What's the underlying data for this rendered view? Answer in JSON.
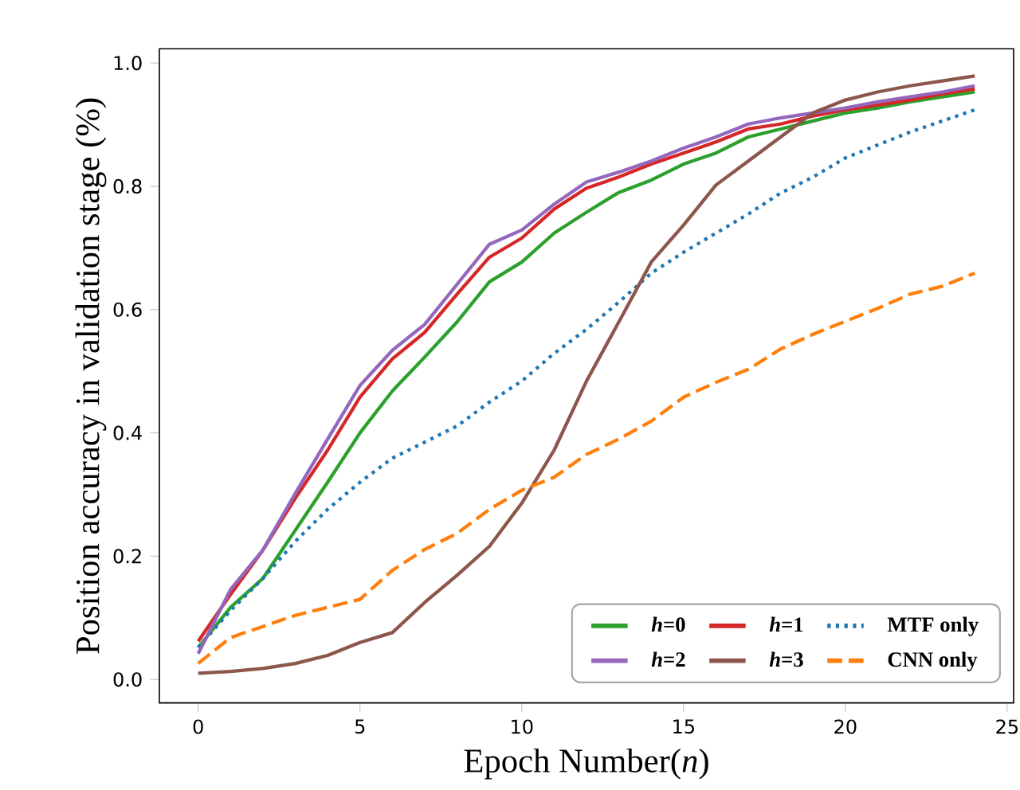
{
  "chart_data": {
    "type": "line",
    "xlabel": "Epoch Number(*n*)",
    "ylabel": "Position accuracy in validation stage (%)",
    "x": [
      0,
      1,
      2,
      3,
      4,
      5,
      6,
      7,
      8,
      9,
      10,
      11,
      12,
      13,
      14,
      15,
      16,
      17,
      18,
      19,
      20,
      21,
      22,
      23,
      24
    ],
    "xlim": [
      -1.2,
      25.2
    ],
    "ylim": [
      -0.038,
      1.023
    ],
    "xticks": [
      0,
      5,
      10,
      15,
      20,
      25
    ],
    "yticks": [
      {
        "value": 0,
        "label": "0.0"
      },
      {
        "value": 0.2,
        "label": "0.2"
      },
      {
        "value": 0.4,
        "label": "0.4"
      },
      {
        "value": 0.6,
        "label": "0.6"
      },
      {
        "value": 0.8,
        "label": "0.8"
      },
      {
        "value": 1.0,
        "label": "1.0"
      }
    ],
    "legend": "bottom right",
    "grid": false,
    "series": [
      {
        "name": "*h*=0",
        "color": "#2ca02c",
        "line_style": "solid",
        "values": [
          0.052,
          0.117,
          0.164,
          0.242,
          0.32,
          0.4,
          0.468,
          0.523,
          0.58,
          0.645,
          0.677,
          0.724,
          0.758,
          0.79,
          0.81,
          0.836,
          0.854,
          0.88,
          0.893,
          0.906,
          0.919,
          0.927,
          0.937,
          0.945,
          0.953
        ]
      },
      {
        "name": "*h*=1",
        "color": "#d62728",
        "line_style": "solid",
        "values": [
          0.062,
          0.138,
          0.21,
          0.294,
          0.372,
          0.458,
          0.52,
          0.563,
          0.625,
          0.685,
          0.716,
          0.763,
          0.797,
          0.815,
          0.836,
          0.854,
          0.872,
          0.893,
          0.901,
          0.914,
          0.924,
          0.932,
          0.94,
          0.95,
          0.958
        ]
      },
      {
        "name": "MTF only",
        "color": "#1f77b4",
        "line_style": "dotted",
        "values": [
          0.052,
          0.112,
          0.164,
          0.224,
          0.276,
          0.32,
          0.359,
          0.385,
          0.411,
          0.45,
          0.484,
          0.529,
          0.568,
          0.612,
          0.659,
          0.693,
          0.724,
          0.755,
          0.789,
          0.815,
          0.846,
          0.867,
          0.888,
          0.906,
          0.924
        ]
      },
      {
        "name": "*h*=2",
        "color": "#9467bd",
        "line_style": "solid",
        "values": [
          0.042,
          0.146,
          0.21,
          0.302,
          0.39,
          0.477,
          0.534,
          0.576,
          0.641,
          0.706,
          0.729,
          0.771,
          0.807,
          0.823,
          0.841,
          0.862,
          0.88,
          0.901,
          0.911,
          0.919,
          0.927,
          0.937,
          0.945,
          0.953,
          0.963
        ]
      },
      {
        "name": "*h*=3",
        "color": "#8c564b",
        "line_style": "solid",
        "values": [
          0.01,
          0.013,
          0.018,
          0.026,
          0.039,
          0.06,
          0.076,
          0.125,
          0.169,
          0.216,
          0.286,
          0.372,
          0.484,
          0.58,
          0.677,
          0.737,
          0.802,
          0.841,
          0.88,
          0.919,
          0.94,
          0.953,
          0.963,
          0.971,
          0.979
        ]
      },
      {
        "name": "CNN only",
        "color": "#ff7f0e",
        "line_style": "dashed",
        "values": [
          0.026,
          0.068,
          0.086,
          0.104,
          0.117,
          0.13,
          0.177,
          0.211,
          0.237,
          0.276,
          0.307,
          0.328,
          0.365,
          0.39,
          0.419,
          0.458,
          0.482,
          0.503,
          0.536,
          0.56,
          0.581,
          0.602,
          0.625,
          0.638,
          0.659
        ]
      }
    ]
  }
}
